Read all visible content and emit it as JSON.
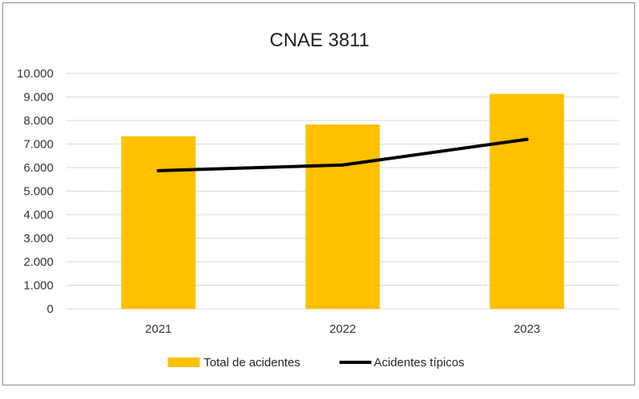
{
  "chart_data": {
    "type": "bar",
    "title": "CNAE 3811",
    "categories": [
      "2021",
      "2022",
      "2023"
    ],
    "series": [
      {
        "name": "Total de acidentes",
        "type": "bar",
        "color": "#FFC000",
        "values": [
          7330,
          7830,
          9130
        ]
      },
      {
        "name": "Acidentes típicos",
        "type": "line",
        "color": "#000000",
        "values": [
          5870,
          6110,
          7200
        ]
      }
    ],
    "ylim": [
      0,
      10000
    ],
    "yticks": [
      "0",
      "1.000",
      "2.000",
      "3.000",
      "4.000",
      "5.000",
      "6.000",
      "7.000",
      "8.000",
      "9.000",
      "10.000"
    ],
    "grid": true,
    "legend_position": "bottom"
  }
}
